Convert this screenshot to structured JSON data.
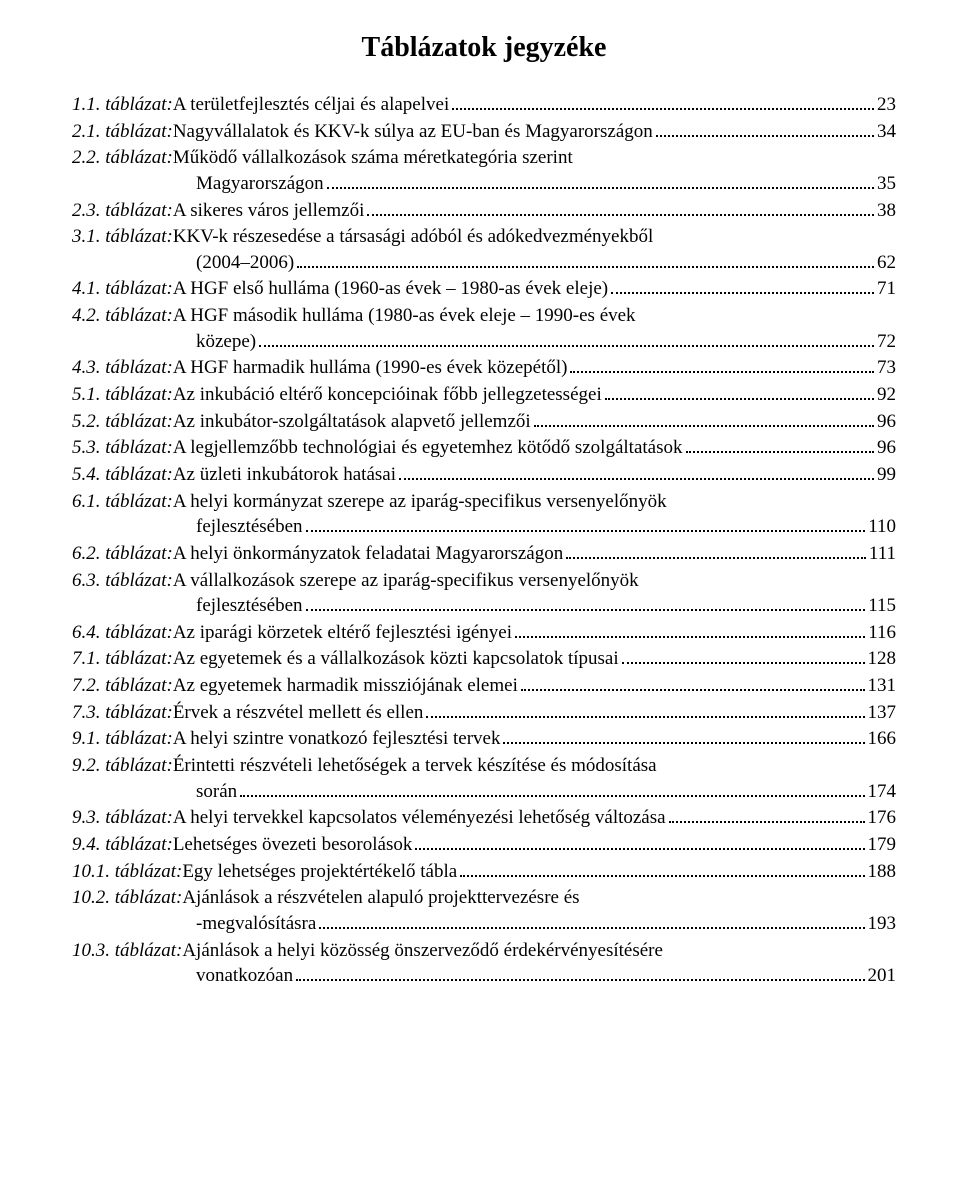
{
  "title": "Táblázatok jegyzéke",
  "font": {
    "family": "Times New Roman",
    "title_size": 28,
    "body_size": 19
  },
  "colors": {
    "background": "#ffffff",
    "text": "#000000",
    "dots": "#000000"
  },
  "entries": [
    {
      "label": "1.1. táblázat:",
      "lines": [
        "A területfejlesztés céljai és alapelvei"
      ],
      "page": "23"
    },
    {
      "label": "2.1. táblázat:",
      "lines": [
        "Nagyvállalatok és KKV-k súlya az EU-ban és Magyarországon"
      ],
      "page": "34"
    },
    {
      "label": "2.2. táblázat:",
      "lines": [
        "Működő vállalkozások száma méretkategória szerint",
        "Magyarországon"
      ],
      "page": "35"
    },
    {
      "label": "2.3. táblázat:",
      "lines": [
        "A sikeres város jellemzői"
      ],
      "page": "38"
    },
    {
      "label": "3.1. táblázat:",
      "lines": [
        "KKV-k részesedése a társasági adóból és adókedvezményekből",
        "(2004–2006)"
      ],
      "page": "62"
    },
    {
      "label": "4.1. táblázat:",
      "lines": [
        "A HGF első hulláma (1960-as évek – 1980-as évek eleje)"
      ],
      "page": "71"
    },
    {
      "label": "4.2. táblázat:",
      "lines": [
        "A HGF második hulláma (1980-as évek eleje – 1990-es évek",
        "közepe)"
      ],
      "page": "72"
    },
    {
      "label": "4.3. táblázat:",
      "lines": [
        "A HGF harmadik hulláma (1990-es évek közepétől)"
      ],
      "page": "73"
    },
    {
      "label": "5.1. táblázat:",
      "lines": [
        "Az inkubáció eltérő koncepcióinak főbb jellegzetességei"
      ],
      "page": "92"
    },
    {
      "label": "5.2. táblázat:",
      "lines": [
        "Az inkubátor-szolgáltatások alapvető jellemzői"
      ],
      "page": "96"
    },
    {
      "label": "5.3. táblázat:",
      "lines": [
        "A legjellemzőbb technológiai és egyetemhez kötődő szolgáltatások"
      ],
      "page": "96",
      "tight": true
    },
    {
      "label": "5.4. táblázat:",
      "lines": [
        "Az üzleti inkubátorok hatásai"
      ],
      "page": "99"
    },
    {
      "label": "6.1. táblázat:",
      "lines": [
        "A helyi kormányzat szerepe az iparág-specifikus versenyelőnyök",
        "fejlesztésében"
      ],
      "page": "110"
    },
    {
      "label": "6.2. táblázat:",
      "lines": [
        "A helyi önkormányzatok feladatai Magyarországon"
      ],
      "page": "111"
    },
    {
      "label": "6.3. táblázat:",
      "lines": [
        "A vállalkozások szerepe az iparág-specifikus versenyelőnyök",
        "fejlesztésében"
      ],
      "page": "115"
    },
    {
      "label": "6.4. táblázat:",
      "lines": [
        "Az iparági körzetek eltérő fejlesztési igényei"
      ],
      "page": "116"
    },
    {
      "label": "7.1. táblázat:",
      "lines": [
        "Az egyetemek és a vállalkozások közti kapcsolatok típusai"
      ],
      "page": "128"
    },
    {
      "label": "7.2. táblázat:",
      "lines": [
        "Az egyetemek harmadik missziójának elemei"
      ],
      "page": "131"
    },
    {
      "label": "7.3. táblázat:",
      "lines": [
        "Érvek a részvétel mellett és ellen"
      ],
      "page": "137"
    },
    {
      "label": "9.1. táblázat:",
      "lines": [
        "A helyi szintre vonatkozó fejlesztési tervek"
      ],
      "page": "166"
    },
    {
      "label": "9.2. táblázat:",
      "lines": [
        "Érintetti részvételi lehetőségek a tervek készítése és módosítása",
        "során"
      ],
      "page": "174"
    },
    {
      "label": "9.3. táblázat:",
      "lines": [
        "A helyi tervekkel kapcsolatos véleményezési lehetőség változása"
      ],
      "page": "176"
    },
    {
      "label": "9.4. táblázat:",
      "lines": [
        "Lehetséges övezeti besorolások"
      ],
      "page": "179"
    },
    {
      "label": "10.1. táblázat:",
      "lines": [
        "Egy lehetséges projektértékelő tábla"
      ],
      "page": "188"
    },
    {
      "label": "10.2. táblázat:",
      "lines": [
        "Ajánlások a részvételen alapuló projekttervezésre és",
        "-megvalósításra"
      ],
      "page": "193"
    },
    {
      "label": "10.3. táblázat:",
      "lines": [
        "Ajánlások a helyi közösség önszerveződő érdekérvényesítésére",
        "vonatkozóan"
      ],
      "page": "201"
    }
  ]
}
